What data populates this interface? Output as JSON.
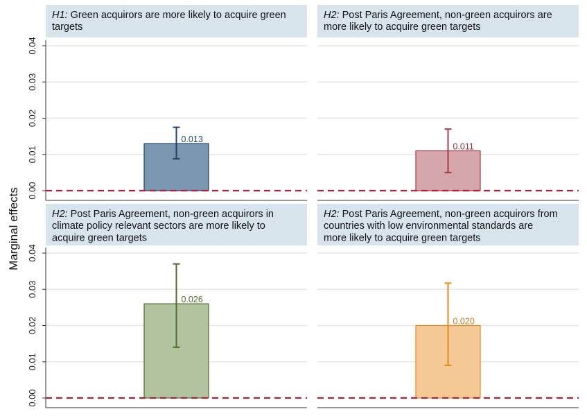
{
  "chart_data": {
    "type": "bar",
    "ylabel": "Marginal effects",
    "ylim": [
      0,
      0.04
    ],
    "yticks": [
      "0.00",
      "0.01",
      "0.02",
      "0.03",
      "0.04"
    ],
    "reference_line": 0,
    "panels": [
      {
        "hypothesis": "H1:",
        "title_lines": [
          "Green acquirors are more likely to acquire green",
          "targets"
        ],
        "value": 0.013,
        "value_label": "0.013",
        "ci": [
          0.0088,
          0.0175
        ],
        "color": "#7b96b1",
        "edge_color": "#1f4368",
        "label_color": "#1f4368"
      },
      {
        "hypothesis": "H2:",
        "title_lines": [
          "Post Paris Agreement, non-green acquirors are",
          "more likely to acquire green targets"
        ],
        "value": 0.011,
        "value_label": "0.011",
        "ci": [
          0.005,
          0.017
        ],
        "color": "#d6a6aa",
        "edge_color": "#a33b4c",
        "label_color": "#8c2d3c"
      },
      {
        "hypothesis": "H2:",
        "title_lines": [
          "Post Paris Agreement, non-green acquirors in",
          "climate policy relevant sectors are more likely to",
          "acquire green targets"
        ],
        "value": 0.026,
        "value_label": "0.026",
        "ci": [
          0.014,
          0.037
        ],
        "color": "#b2c3a0",
        "edge_color": "#4d6b2b",
        "label_color": "#4d6b2b"
      },
      {
        "hypothesis": "H2:",
        "title_lines": [
          "Post Paris Agreement, non-green acquirors from",
          "countries with low environmental standards are",
          "more likely to acquire green targets"
        ],
        "value": 0.02,
        "value_label": "0.020",
        "ci": [
          0.009,
          0.0317
        ],
        "color": "#f5c995",
        "edge_color": "#e08a1c",
        "label_color": "#c97a14"
      }
    ]
  }
}
